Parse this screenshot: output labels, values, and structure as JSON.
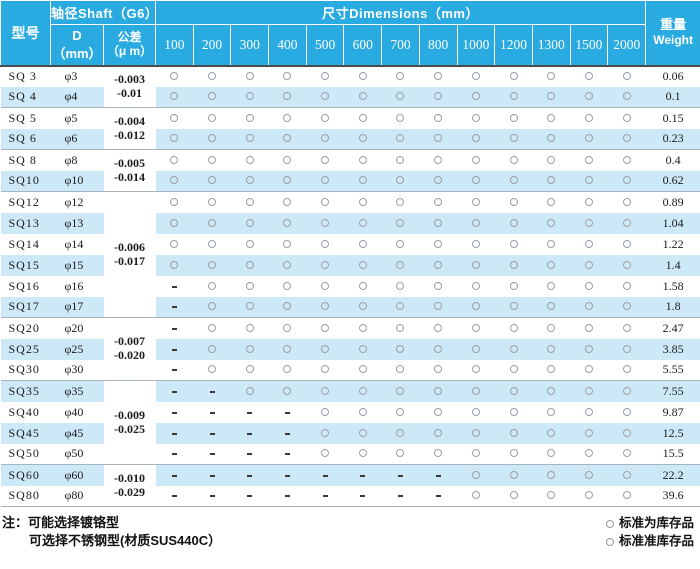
{
  "header": {
    "model": "型号",
    "shaft_group": "轴径Shaft（G6）",
    "d_label": "D（mm）",
    "tol_line1": "公差",
    "tol_line2": "（μ m）",
    "dims_group": "尺寸Dimensions（mm）",
    "dim_columns": [
      "100",
      "200",
      "300",
      "400",
      "500",
      "600",
      "700",
      "800",
      "1000",
      "1200",
      "1300",
      "1500",
      "2000"
    ],
    "weight_line1": "重量",
    "weight_line2": "Weight"
  },
  "tolerance_groups": [
    {
      "line1": "-0.003",
      "line2": "-0.01",
      "rows": 2
    },
    {
      "line1": "-0.004",
      "line2": "-0.012",
      "rows": 2
    },
    {
      "line1": "-0.005",
      "line2": "-0.014",
      "rows": 2
    },
    {
      "line1": "-0.006",
      "line2": "-0.017",
      "rows": 6
    },
    {
      "line1": "-0.007",
      "line2": "-0.020",
      "rows": 3
    },
    {
      "line1": "-0.009",
      "line2": "-0.025",
      "rows": 4
    },
    {
      "line1": "-0.010",
      "line2": "-0.029",
      "rows": 2
    }
  ],
  "rows": [
    {
      "model": "SQ 3",
      "d": "φ3",
      "availability": [
        "O",
        "O",
        "O",
        "O",
        "O",
        "O",
        "O",
        "O",
        "O",
        "O",
        "O",
        "O",
        "O"
      ],
      "weight": "0.06"
    },
    {
      "model": "SQ 4",
      "d": "φ4",
      "availability": [
        "O",
        "O",
        "O",
        "O",
        "O",
        "O",
        "O",
        "O",
        "O",
        "O",
        "O",
        "O",
        "O"
      ],
      "weight": "0.1"
    },
    {
      "model": "SQ 5",
      "d": "φ5",
      "availability": [
        "O",
        "O",
        "O",
        "O",
        "O",
        "O",
        "O",
        "O",
        "O",
        "O",
        "O",
        "O",
        "O"
      ],
      "weight": "0.15"
    },
    {
      "model": "SQ 6",
      "d": "φ6",
      "availability": [
        "O",
        "O",
        "O",
        "O",
        "O",
        "O",
        "O",
        "O",
        "O",
        "O",
        "O",
        "O",
        "O"
      ],
      "weight": "0.23"
    },
    {
      "model": "SQ 8",
      "d": "φ8",
      "availability": [
        "O",
        "O",
        "O",
        "O",
        "O",
        "O",
        "O",
        "O",
        "O",
        "O",
        "O",
        "O",
        "O"
      ],
      "weight": "0.4"
    },
    {
      "model": "SQ10",
      "d": "φ10",
      "availability": [
        "O",
        "O",
        "O",
        "O",
        "O",
        "O",
        "O",
        "O",
        "O",
        "O",
        "O",
        "O",
        "O"
      ],
      "weight": "0.62"
    },
    {
      "model": "SQ12",
      "d": "φ12",
      "availability": [
        "O",
        "O",
        "O",
        "O",
        "O",
        "O",
        "O",
        "O",
        "O",
        "O",
        "O",
        "O",
        "O"
      ],
      "weight": "0.89"
    },
    {
      "model": "SQ13",
      "d": "φ13",
      "availability": [
        "O",
        "O",
        "O",
        "O",
        "O",
        "O",
        "O",
        "O",
        "O",
        "O",
        "O",
        "O",
        "O"
      ],
      "weight": "1.04"
    },
    {
      "model": "SQ14",
      "d": "φ14",
      "availability": [
        "O",
        "O",
        "O",
        "O",
        "O",
        "O",
        "O",
        "O",
        "O",
        "O",
        "O",
        "O",
        "O"
      ],
      "weight": "1.22"
    },
    {
      "model": "SQ15",
      "d": "φ15",
      "availability": [
        "O",
        "O",
        "O",
        "O",
        "O",
        "O",
        "O",
        "O",
        "O",
        "O",
        "O",
        "O",
        "O"
      ],
      "weight": "1.4"
    },
    {
      "model": "SQ16",
      "d": "φ16",
      "availability": [
        "-",
        "O",
        "O",
        "O",
        "O",
        "O",
        "O",
        "O",
        "O",
        "O",
        "O",
        "O",
        "O"
      ],
      "weight": "1.58"
    },
    {
      "model": "SQ17",
      "d": "φ17",
      "availability": [
        "-",
        "O",
        "O",
        "O",
        "O",
        "O",
        "O",
        "O",
        "O",
        "O",
        "O",
        "O",
        "O"
      ],
      "weight": "1.8"
    },
    {
      "model": "SQ20",
      "d": "φ20",
      "availability": [
        "-",
        "O",
        "O",
        "O",
        "O",
        "O",
        "O",
        "O",
        "O",
        "O",
        "O",
        "O",
        "O"
      ],
      "weight": "2.47"
    },
    {
      "model": "SQ25",
      "d": "φ25",
      "availability": [
        "-",
        "O",
        "O",
        "O",
        "O",
        "O",
        "O",
        "O",
        "O",
        "O",
        "O",
        "O",
        "O"
      ],
      "weight": "3.85"
    },
    {
      "model": "SQ30",
      "d": "φ30",
      "availability": [
        "-",
        "O",
        "O",
        "O",
        "O",
        "O",
        "O",
        "O",
        "O",
        "O",
        "O",
        "O",
        "O"
      ],
      "weight": "5.55"
    },
    {
      "model": "SQ35",
      "d": "φ35",
      "availability": [
        "-",
        "-",
        "O",
        "O",
        "O",
        "O",
        "O",
        "O",
        "O",
        "O",
        "O",
        "O",
        "O"
      ],
      "weight": "7.55"
    },
    {
      "model": "SQ40",
      "d": "φ40",
      "availability": [
        "-",
        "-",
        "-",
        "-",
        "O",
        "O",
        "O",
        "O",
        "O",
        "O",
        "O",
        "O",
        "O"
      ],
      "weight": "9.87"
    },
    {
      "model": "SQ45",
      "d": "φ45",
      "availability": [
        "-",
        "-",
        "-",
        "-",
        "O",
        "O",
        "O",
        "O",
        "O",
        "O",
        "O",
        "O",
        "O"
      ],
      "weight": "12.5"
    },
    {
      "model": "SQ50",
      "d": "φ50",
      "availability": [
        "-",
        "-",
        "-",
        "-",
        "O",
        "O",
        "O",
        "O",
        "O",
        "O",
        "O",
        "O",
        "O"
      ],
      "weight": "15.5"
    },
    {
      "model": "SQ60",
      "d": "φ60",
      "availability": [
        "-",
        "-",
        "-",
        "-",
        "-",
        "-",
        "-",
        "-",
        "O",
        "O",
        "O",
        "O",
        "O"
      ],
      "weight": "22.2"
    },
    {
      "model": "SQ80",
      "d": "φ80",
      "availability": [
        "-",
        "-",
        "-",
        "-",
        "-",
        "-",
        "-",
        "-",
        "O",
        "O",
        "O",
        "O",
        "O"
      ],
      "weight": "39.6"
    }
  ],
  "notes": {
    "prefix": "注：",
    "line1": "可能选择镀铬型",
    "line2": "可选择不锈钢型(材质SUS440C）"
  },
  "legend": [
    {
      "symbol": "○",
      "label": "标准为库存品"
    },
    {
      "symbol": "○",
      "label": "标准准库存品"
    }
  ],
  "colors": {
    "header_bg": "#29ABE2",
    "row_alt_bg": "#CDE8F7",
    "circle_ring": "#9AA0A6",
    "dash": "#3A3A3A",
    "group_separator": "#A9B4BA"
  }
}
